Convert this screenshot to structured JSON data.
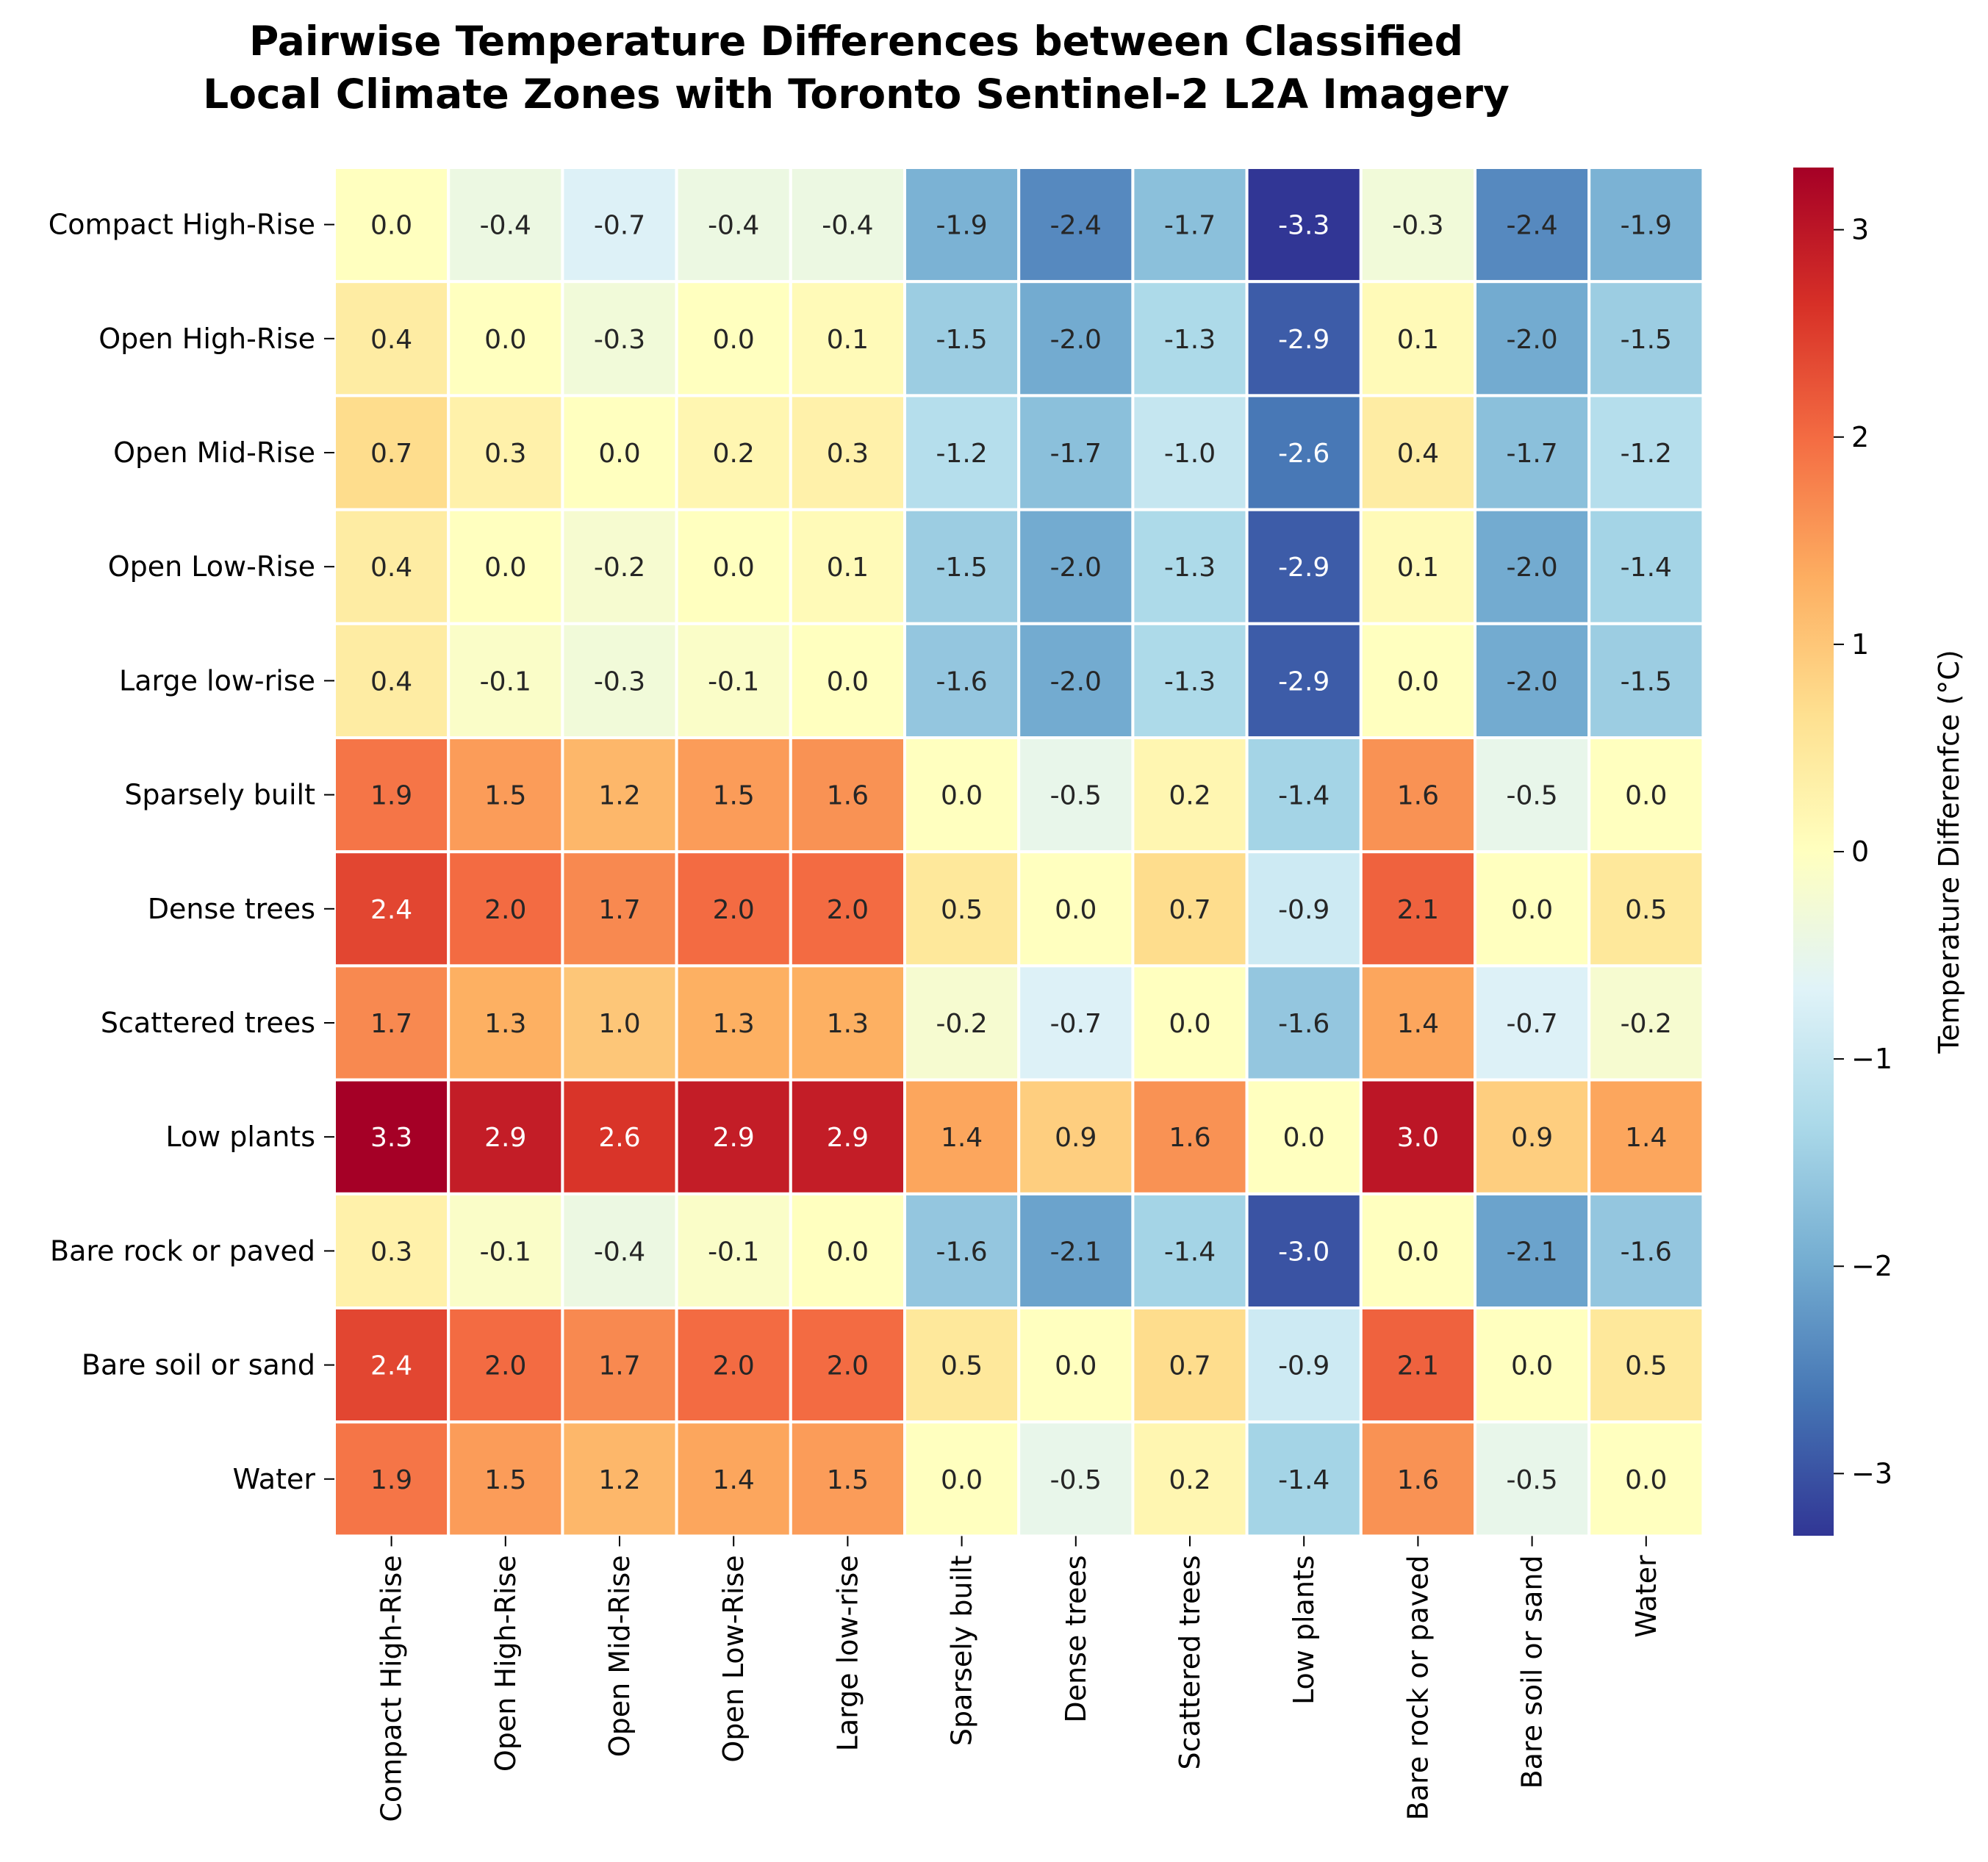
{
  "chart_data": {
    "type": "heatmap",
    "title": "Pairwise Temperature Differences between Classified\nLocal Climate Zones with Toronto Sentinel-2 L2A Imagery",
    "xlabel": "",
    "ylabel": "",
    "rows": [
      "Compact High-Rise",
      "Open High-Rise",
      "Open Mid-Rise",
      "Open Low-Rise",
      "Large low-rise",
      "Sparsely built",
      "Dense trees",
      "Scattered trees",
      "Low plants",
      "Bare rock or paved",
      "Bare soil or sand",
      "Water"
    ],
    "columns": [
      "Compact High-Rise",
      "Open High-Rise",
      "Open Mid-Rise",
      "Open Low-Rise",
      "Large low-rise",
      "Sparsely built",
      "Dense trees",
      "Scattered trees",
      "Low plants",
      "Bare rock or paved",
      "Bare soil or sand",
      "Water"
    ],
    "values": [
      [
        0.0,
        -0.4,
        -0.7,
        -0.4,
        -0.4,
        -1.9,
        -2.4,
        -1.7,
        -3.3,
        -0.3,
        -2.4,
        -1.9
      ],
      [
        0.4,
        0.0,
        -0.3,
        -0.0,
        0.1,
        -1.5,
        -2.0,
        -1.3,
        -2.9,
        0.1,
        -2.0,
        -1.5
      ],
      [
        0.7,
        0.3,
        0.0,
        0.2,
        0.3,
        -1.2,
        -1.7,
        -1.0,
        -2.6,
        0.4,
        -1.7,
        -1.2
      ],
      [
        0.4,
        0.0,
        -0.2,
        0.0,
        0.1,
        -1.5,
        -2.0,
        -1.3,
        -2.9,
        0.1,
        -2.0,
        -1.4
      ],
      [
        0.4,
        -0.1,
        -0.3,
        -0.1,
        0.0,
        -1.6,
        -2.0,
        -1.3,
        -2.9,
        0.0,
        -2.0,
        -1.5
      ],
      [
        1.9,
        1.5,
        1.2,
        1.5,
        1.6,
        0.0,
        -0.5,
        0.2,
        -1.4,
        1.6,
        -0.5,
        0.0
      ],
      [
        2.4,
        2.0,
        1.7,
        2.0,
        2.0,
        0.5,
        0.0,
        0.7,
        -0.9,
        2.1,
        -0.0,
        0.5
      ],
      [
        1.7,
        1.3,
        1.0,
        1.3,
        1.3,
        -0.2,
        -0.7,
        0.0,
        -1.6,
        1.4,
        -0.7,
        -0.2
      ],
      [
        3.3,
        2.9,
        2.6,
        2.9,
        2.9,
        1.4,
        0.9,
        1.6,
        0.0,
        3.0,
        0.9,
        1.4
      ],
      [
        0.3,
        -0.1,
        -0.4,
        -0.1,
        -0.0,
        -1.6,
        -2.1,
        -1.4,
        -3.0,
        0.0,
        -2.1,
        -1.6
      ],
      [
        2.4,
        2.0,
        1.7,
        2.0,
        2.0,
        0.5,
        0.0,
        0.7,
        -0.9,
        2.1,
        0.0,
        0.5
      ],
      [
        1.9,
        1.5,
        1.2,
        1.4,
        1.5,
        -0.0,
        -0.5,
        0.2,
        -1.4,
        1.6,
        -0.5,
        0.0
      ]
    ],
    "value_format": "0.1f",
    "colormap": "RdYlBu_r",
    "vmin": -3.3,
    "vmax": 3.3,
    "colorbar": {
      "label": "Temperature Differenfce (°C)",
      "ticks": [
        3,
        2,
        1,
        0,
        -1,
        -2,
        -3
      ],
      "tick_labels": [
        "3",
        "2",
        "1",
        "0",
        "−1",
        "−2",
        "−3"
      ]
    },
    "cell_border_color": "#ffffff",
    "grid": false
  }
}
